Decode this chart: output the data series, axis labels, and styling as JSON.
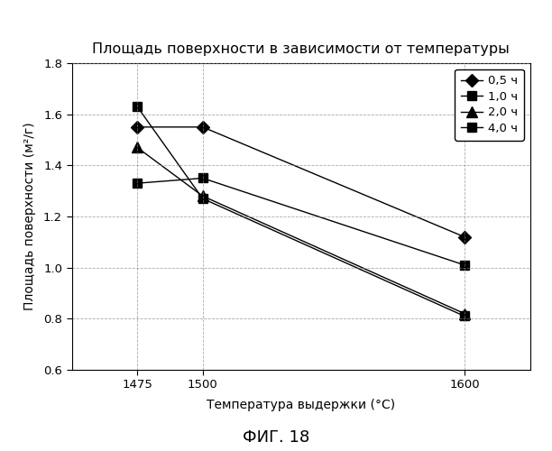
{
  "title": "Площадь поверхности в зависимости от температуры",
  "xlabel": "Температура выдержки (°C)",
  "ylabel": "Площадь поверхности (м²/г)",
  "x": [
    1475,
    1500,
    1600
  ],
  "series": [
    {
      "label": "0,5 ч",
      "values": [
        1.55,
        1.55,
        1.12
      ],
      "marker": "D",
      "color": "#000000"
    },
    {
      "label": "1,0 ч",
      "values": [
        1.33,
        1.35,
        1.01
      ],
      "marker": "s",
      "color": "#000000"
    },
    {
      "label": "2,0 ч",
      "values": [
        1.47,
        1.28,
        0.82
      ],
      "marker": "^",
      "color": "#000000"
    },
    {
      "label": "4,0 ч",
      "values": [
        1.63,
        1.27,
        0.81
      ],
      "marker": "s",
      "color": "#000000"
    }
  ],
  "ylim": [
    0.6,
    1.8
  ],
  "yticks": [
    0.6,
    0.8,
    1.0,
    1.2,
    1.4,
    1.6,
    1.8
  ],
  "xticks": [
    1475,
    1500,
    1600
  ],
  "xlim": [
    1450,
    1625
  ],
  "fig_caption": "ФИГ. 18",
  "background_color": "#ffffff",
  "grid_color": "#888888",
  "title_fontsize": 11.5,
  "label_fontsize": 10,
  "legend_fontsize": 9.5,
  "tick_fontsize": 9.5,
  "caption_fontsize": 13
}
